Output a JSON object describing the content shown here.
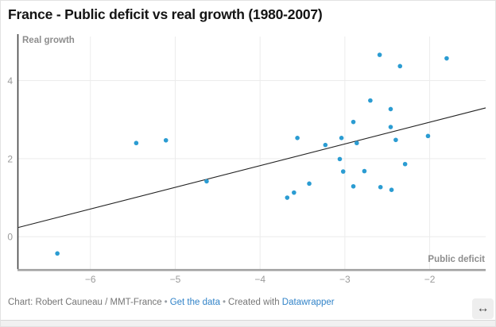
{
  "title": "France - Public deficit vs real growth (1980-2007)",
  "footer": {
    "credit": "Chart: Robert Cauneau / MMT-France",
    "sep1": "•",
    "get_data_link": "Get the data",
    "sep2": "•",
    "created_with": "Created with",
    "datawrapper_link": "Datawrapper"
  },
  "resize_icon_glyph": "↔",
  "colors": {
    "point_blue": "#2b9cd2",
    "link_blue": "#3183c8",
    "title_black": "#141414",
    "footer_gray": "#767676",
    "tick_label_gray": "#9b9b9b",
    "axis_title_gray": "#8d8d8d",
    "grid_gray": "#ececec",
    "x_axis_line_gray": "#a2a2a2",
    "y_axis_line_dark": "#444444",
    "trend_line_black": "#222222"
  },
  "chart_data": {
    "type": "scatter",
    "title": "France - Public deficit vs real growth (1980-2007)",
    "xlabel": "Public deficit",
    "ylabel": "Real growth",
    "xlim": [
      -6.86,
      -1.34
    ],
    "ylim": [
      -0.83,
      5.13
    ],
    "x_ticks": [
      -6,
      -5,
      -4,
      -3,
      -2
    ],
    "y_ticks": [
      4,
      2,
      0
    ],
    "grid": true,
    "legend": false,
    "point_color": "#2b9cd2",
    "points": [
      [
        -6.39,
        -0.43
      ],
      [
        -5.46,
        2.4
      ],
      [
        -5.11,
        2.47
      ],
      [
        -4.63,
        1.42
      ],
      [
        -3.68,
        1.0
      ],
      [
        -3.6,
        1.13
      ],
      [
        -3.56,
        2.53
      ],
      [
        -3.42,
        1.36
      ],
      [
        -3.23,
        2.35
      ],
      [
        -3.06,
        1.99
      ],
      [
        -3.04,
        2.53
      ],
      [
        -3.02,
        1.67
      ],
      [
        -2.9,
        2.94
      ],
      [
        -2.9,
        1.29
      ],
      [
        -2.86,
        2.4
      ],
      [
        -2.77,
        1.68
      ],
      [
        -2.7,
        3.49
      ],
      [
        -2.59,
        4.66
      ],
      [
        -2.58,
        1.27
      ],
      [
        -2.46,
        3.27
      ],
      [
        -2.46,
        2.81
      ],
      [
        -2.45,
        1.2
      ],
      [
        -2.4,
        2.48
      ],
      [
        -2.35,
        4.37
      ],
      [
        -2.29,
        1.86
      ],
      [
        -2.02,
        2.58
      ],
      [
        -1.8,
        4.57
      ]
    ],
    "trend_line": {
      "x1": -6.86,
      "y1": 0.23,
      "x2": -1.34,
      "y2": 3.3
    }
  }
}
